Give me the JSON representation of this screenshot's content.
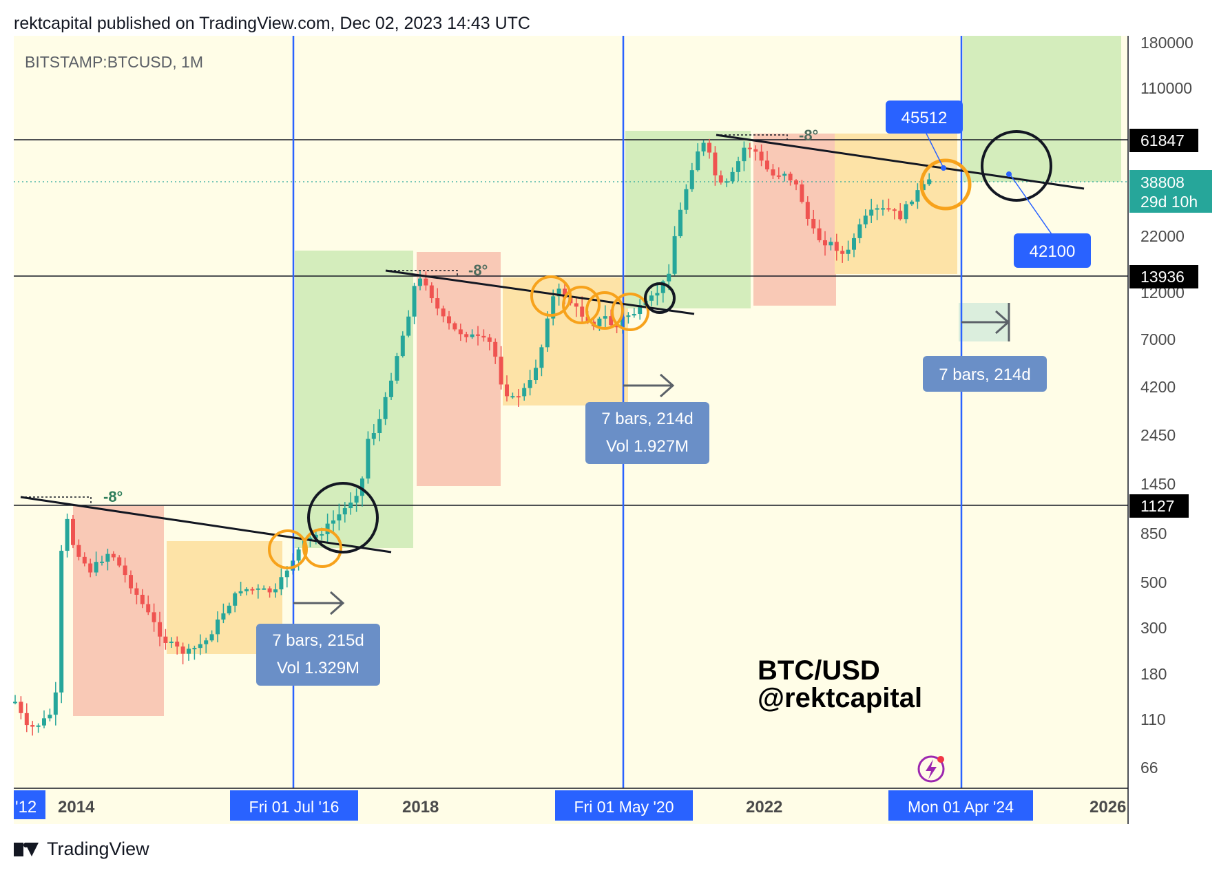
{
  "header": {
    "published": "rektcapital published on TradingView.com, Dec 02, 2023 14:43 UTC"
  },
  "footer": {
    "brand": "TradingView"
  },
  "colors": {
    "background": "#fffde7",
    "green_zone": "#d4edbc",
    "red_zone": "#f9c9b6",
    "orange_zone": "#fde3a7",
    "up_candle": "#26a69a",
    "down_candle": "#ef5350",
    "vertical_line": "#2962ff",
    "label_blue": "#2962ff",
    "label_range": "#6a8fc7",
    "circle_orange": "#f7a21b"
  },
  "chart_data": {
    "type": "candlestick",
    "symbol": "BITSTAMP:BTCUSD, 1M",
    "watermark": [
      "BTC/USD",
      "@rektcapital"
    ],
    "y_scale": "log",
    "y_ticks": [
      "180000",
      "110000",
      "22000",
      "12000",
      "7000",
      "4200",
      "2450",
      "1450",
      "850",
      "500",
      "300",
      "180",
      "110",
      "66"
    ],
    "price_levels": [
      {
        "label": "61847",
        "value": 61847
      },
      {
        "label": "13936",
        "value": 13936
      },
      {
        "label": "1127",
        "value": 1127
      }
    ],
    "current_price": {
      "value": "38808",
      "countdown": "29d 10h"
    },
    "x_ticks": [
      "'12",
      "2014",
      "2018",
      "2022",
      "2026"
    ],
    "halving_labels": [
      "Fri 01 Jul '16",
      "Fri 01 May '20",
      "Mon 01 Apr '24"
    ],
    "angle_labels": [
      "-8°",
      "-8°",
      "-8°"
    ],
    "callouts": [
      {
        "id": "upper",
        "value": "45512"
      },
      {
        "id": "lower",
        "value": "42100"
      }
    ],
    "range_boxes": [
      {
        "line1": "7 bars, 215d",
        "line2": "Vol 1.329M"
      },
      {
        "line1": "7 bars, 214d",
        "line2": "Vol 1.927M"
      },
      {
        "line1": "7 bars, 214d",
        "line2": ""
      }
    ]
  }
}
